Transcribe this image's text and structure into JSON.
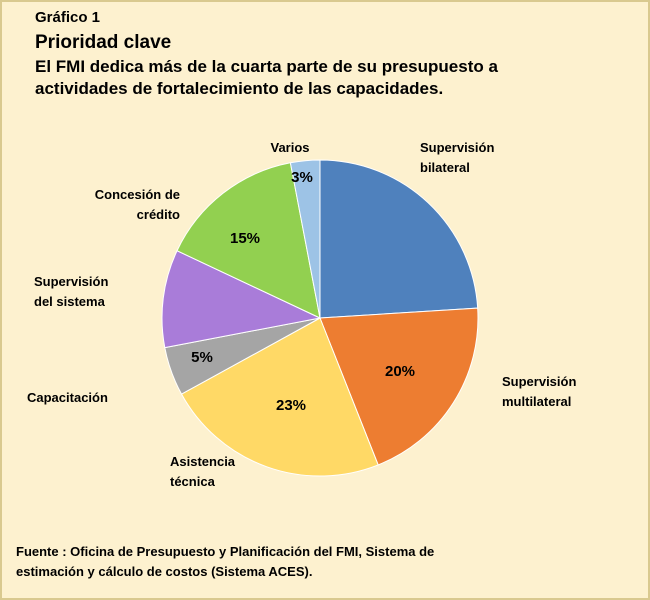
{
  "chart_data": {
    "type": "pie",
    "kicker": "Gráfico 1",
    "title": "Prioridad clave",
    "subtitle_lines": [
      "El FMI dedica más de la cuarta parte de su presupuesto a",
      "actividades de fortalecimiento de las capacidades."
    ],
    "slices": [
      {
        "label_lines": [
          "Supervisión",
          "bilateral"
        ],
        "value": 24,
        "value_label": "",
        "color": "#4f81bd"
      },
      {
        "label_lines": [
          "Supervisión",
          "multilateral"
        ],
        "value": 20,
        "value_label": "20%",
        "color": "#ed7d31"
      },
      {
        "label_lines": [
          "Asistencia",
          "técnica"
        ],
        "value": 23,
        "value_label": "23%",
        "color": "#ffd966"
      },
      {
        "label_lines": [
          "Capacitación"
        ],
        "value": 5,
        "value_label": "5%",
        "color": "#a5a5a5"
      },
      {
        "label_lines": [
          "Supervisión",
          "del sistema"
        ],
        "value": 10,
        "value_label": "",
        "color": "#a97cd9"
      },
      {
        "label_lines": [
          "Concesión de",
          "crédito"
        ],
        "value": 15,
        "value_label": "15%",
        "color": "#92d050"
      },
      {
        "label_lines": [
          "Varios"
        ],
        "value": 3,
        "value_label": "3%",
        "color": "#9dc3e6"
      }
    ],
    "source_lines": [
      "Fuente : Oficina de Presupuesto y Planificación del FMI, Sistema de",
      "estimación y cálculo de costos (Sistema ACES)."
    ]
  }
}
